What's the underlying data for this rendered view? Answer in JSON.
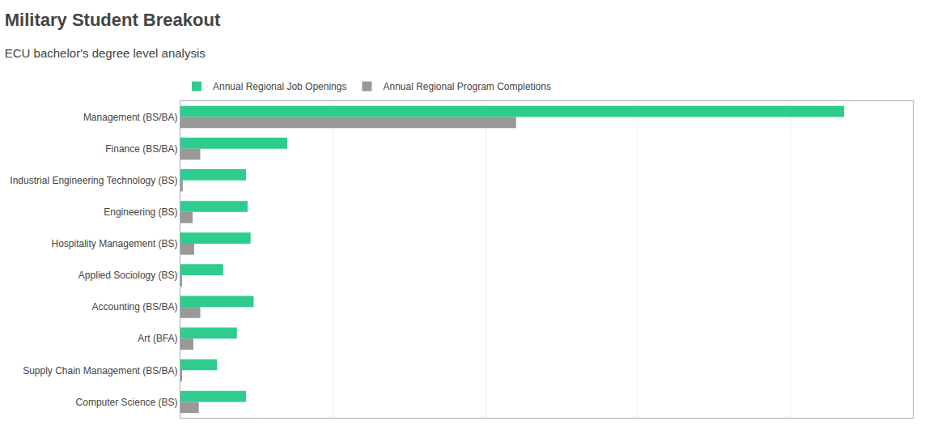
{
  "chart_data": {
    "type": "bar",
    "orientation": "horizontal",
    "title": "Military Student Breakout",
    "subtitle": "ECU bachelor's degree level analysis",
    "categories": [
      "Management (BS/BA)",
      "Finance (BS/BA)",
      "Industrial Engineering Technology (BS)",
      "Engineering (BS)",
      "Hospitality Management (BS)",
      "Applied Sociology (BS)",
      "Accounting (BS/BA)",
      "Art (BFA)",
      "Supply Chain Management (BS/BA)",
      "Computer Science (BS)"
    ],
    "series": [
      {
        "name": "Annual Regional Job Openings",
        "color": "#2ecc8e",
        "values": [
          4350,
          700,
          430,
          440,
          460,
          280,
          480,
          370,
          240,
          430
        ]
      },
      {
        "name": "Annual Regional Program Completions",
        "color": "#999999",
        "values": [
          2200,
          130,
          15,
          80,
          90,
          10,
          130,
          85,
          10,
          120
        ]
      }
    ],
    "xlim": [
      0,
      4800
    ],
    "xticks": [
      0,
      1000,
      2000,
      3000,
      4000
    ],
    "grid": true,
    "legend": "upper left",
    "tick_labels": "y"
  }
}
